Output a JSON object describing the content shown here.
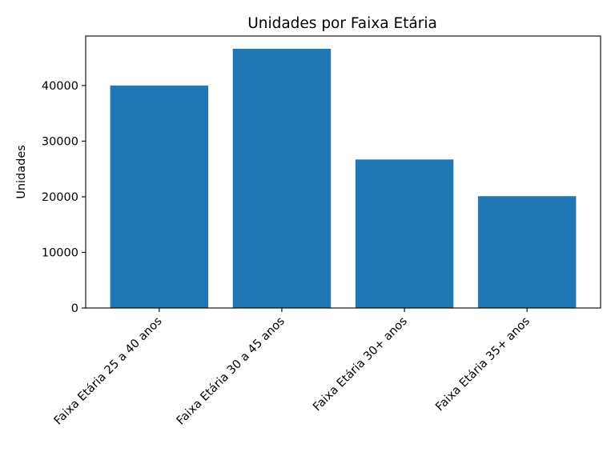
{
  "chart_data": {
    "type": "bar",
    "title": "Unidades por Faixa Etária",
    "xlabel": "",
    "ylabel": "Unidades",
    "categories": [
      "Faixa Etária 25 a 40 anos",
      "Faixa Etária 30 a 45 anos",
      "Faixa Etária 30+ anos",
      "Faixa Etária 35+ anos"
    ],
    "values": [
      40000,
      46600,
      26700,
      20100
    ],
    "ylim": [
      0,
      48900
    ],
    "yticks": [
      0,
      10000,
      20000,
      30000,
      40000
    ],
    "ytick_labels": [
      "0",
      "10000",
      "20000",
      "30000",
      "40000"
    ],
    "bar_color": "#1f77b4",
    "grid": false,
    "legend": false
  }
}
